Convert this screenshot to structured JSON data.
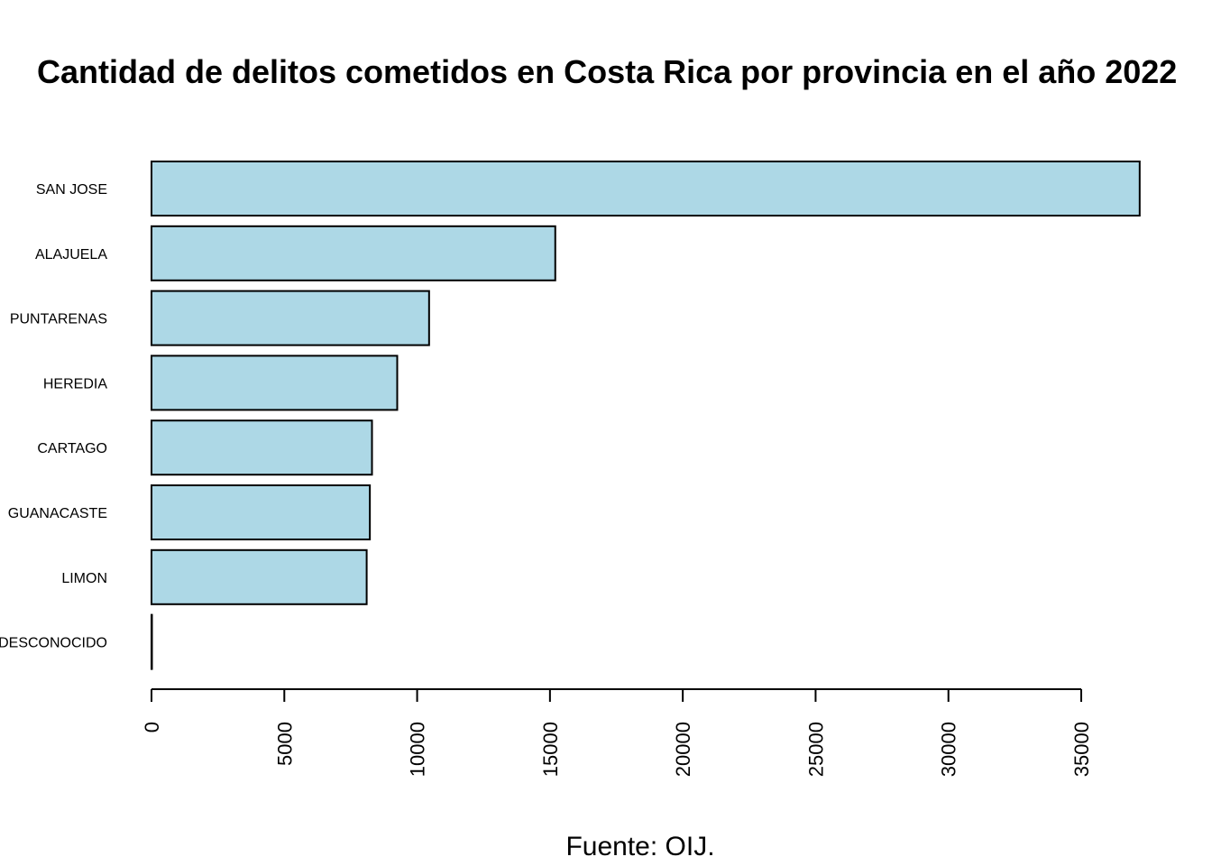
{
  "chart_data": {
    "type": "bar",
    "orientation": "horizontal",
    "title": "Cantidad de delitos cometidos en Costa Rica por provincia en el año 2022",
    "caption": "Fuente: OIJ.",
    "xlabel": "",
    "ylabel": "",
    "categories": [
      "SAN JOSE",
      "ALAJUELA",
      "PUNTARENAS",
      "HEREDIA",
      "CARTAGO",
      "GUANACASTE",
      "LIMON",
      "DESCONOCIDO"
    ],
    "values": [
      37200,
      15200,
      10450,
      9250,
      8300,
      8220,
      8100,
      5
    ],
    "x_ticks": [
      0,
      5000,
      10000,
      15000,
      20000,
      25000,
      30000,
      35000
    ],
    "xlim": [
      0,
      37200
    ],
    "grid": false,
    "legend": "none",
    "bar_color": "#add8e6",
    "bar_border_color": "#000000"
  }
}
